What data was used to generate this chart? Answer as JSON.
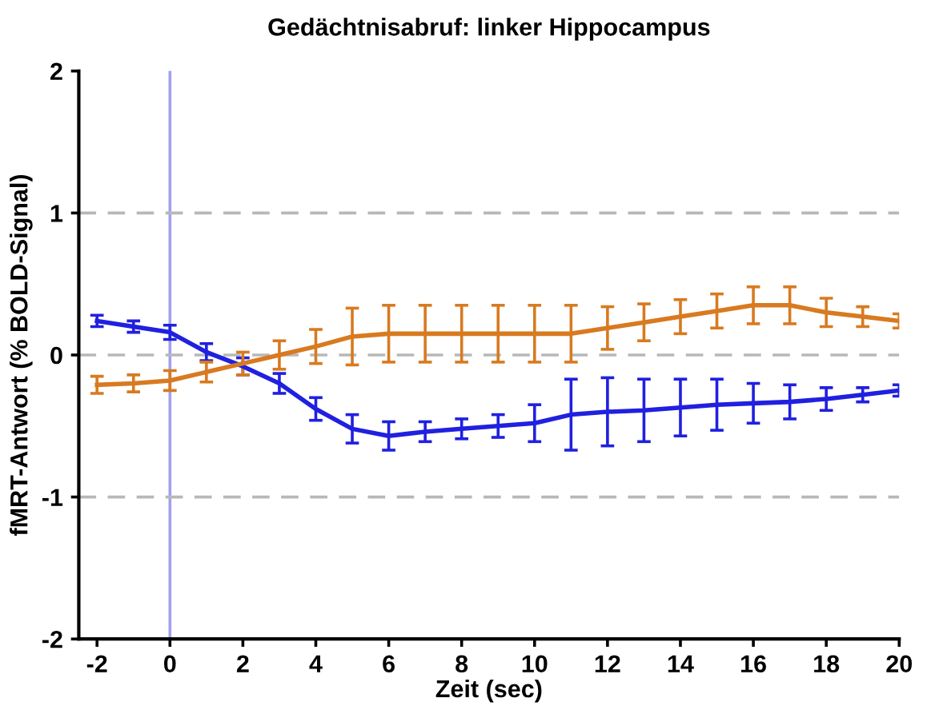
{
  "chart_data": {
    "type": "line",
    "title": "Gedächtnisabruf: linker Hippocampus",
    "xlabel": "Zeit (sec)",
    "ylabel": "fMRT-Antwort (% BOLD-Signal)",
    "x": [
      -2,
      -1,
      0,
      1,
      2,
      3,
      4,
      5,
      6,
      7,
      8,
      9,
      10,
      11,
      12,
      13,
      14,
      15,
      16,
      17,
      18,
      19,
      20
    ],
    "series": [
      {
        "color": "#2020e0",
        "values": [
          0.24,
          0.2,
          0.16,
          0.02,
          -0.08,
          -0.2,
          -0.38,
          -0.52,
          -0.57,
          -0.54,
          -0.52,
          -0.5,
          -0.48,
          -0.42,
          -0.4,
          -0.39,
          -0.37,
          -0.35,
          -0.34,
          -0.33,
          -0.31,
          -0.28,
          -0.25
        ],
        "errors": [
          0.04,
          0.04,
          0.05,
          0.06,
          0.06,
          0.07,
          0.08,
          0.1,
          0.1,
          0.07,
          0.07,
          0.08,
          0.13,
          0.25,
          0.24,
          0.22,
          0.2,
          0.18,
          0.14,
          0.12,
          0.08,
          0.05,
          0.04
        ]
      },
      {
        "color": "#d87a20",
        "values": [
          -0.21,
          -0.2,
          -0.18,
          -0.12,
          -0.06,
          0.0,
          0.06,
          0.13,
          0.15,
          0.15,
          0.15,
          0.15,
          0.15,
          0.15,
          0.19,
          0.23,
          0.27,
          0.31,
          0.35,
          0.35,
          0.3,
          0.27,
          0.24
        ],
        "errors": [
          0.06,
          0.06,
          0.07,
          0.07,
          0.08,
          0.1,
          0.12,
          0.2,
          0.2,
          0.2,
          0.2,
          0.2,
          0.2,
          0.2,
          0.15,
          0.13,
          0.12,
          0.12,
          0.13,
          0.13,
          0.1,
          0.07,
          0.05
        ]
      }
    ],
    "xlim": [
      -2.5,
      20
    ],
    "ylim": [
      -2,
      2
    ],
    "xticks": [
      -2,
      0,
      2,
      4,
      6,
      8,
      10,
      12,
      14,
      16,
      18,
      20
    ],
    "yticks": [
      -2,
      -1,
      0,
      1,
      2
    ],
    "ref_lines": [
      {
        "axis": "x",
        "value": 0,
        "color": "#a0a0f0",
        "line_style": "solid"
      },
      {
        "axis": "y",
        "value": 1,
        "color": "#b8b8b8",
        "line_style": "dashed"
      },
      {
        "axis": "y",
        "value": 0,
        "color": "#b8b8b8",
        "line_style": "dashed"
      },
      {
        "axis": "y",
        "value": -1,
        "color": "#b8b8b8",
        "line_style": "dashed"
      }
    ],
    "grid": false,
    "marker": "none",
    "line_style": "solid"
  }
}
